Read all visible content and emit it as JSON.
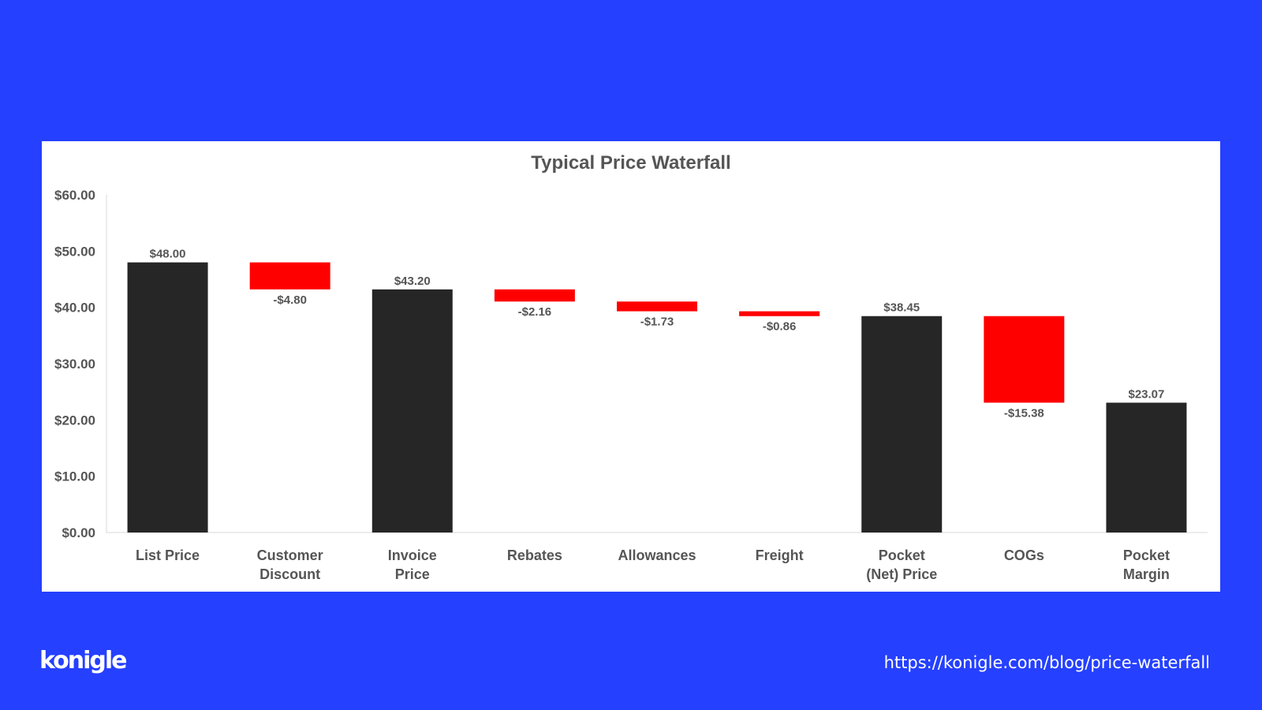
{
  "brand": {
    "logo_text": "konigle"
  },
  "footer": {
    "url": "https://konigle.com/blog/price-waterfall"
  },
  "colors": {
    "background": "#2540ff",
    "total_bar": "#262626",
    "decrease_bar": "#ff0000"
  },
  "chart_data": {
    "type": "bar",
    "subtype": "waterfall",
    "title": "Typical Price Waterfall",
    "xlabel": "",
    "ylabel": "",
    "ylim": [
      0,
      60
    ],
    "yticks": [
      0,
      10,
      20,
      30,
      40,
      50,
      60
    ],
    "ytick_labels": [
      "$0.00",
      "$10.00",
      "$20.00",
      "$30.00",
      "$40.00",
      "$50.00",
      "$60.00"
    ],
    "grid": false,
    "legend": "none",
    "categories": [
      [
        "List Price"
      ],
      [
        "Customer",
        "Discount"
      ],
      [
        "Invoice",
        "Price"
      ],
      [
        "Rebates"
      ],
      [
        "Allowances"
      ],
      [
        "Freight"
      ],
      [
        "Pocket",
        "(Net) Price"
      ],
      [
        "COGs"
      ],
      [
        "Pocket",
        "Margin"
      ]
    ],
    "bars": [
      {
        "kind": "total",
        "start": 0,
        "end": 48.0,
        "label": "$48.00"
      },
      {
        "kind": "decrease",
        "start": 48.0,
        "end": 43.2,
        "label": "-$4.80"
      },
      {
        "kind": "total",
        "start": 0,
        "end": 43.2,
        "label": "$43.20"
      },
      {
        "kind": "decrease",
        "start": 43.2,
        "end": 41.04,
        "label": "-$2.16"
      },
      {
        "kind": "decrease",
        "start": 41.04,
        "end": 39.31,
        "label": "-$1.73"
      },
      {
        "kind": "decrease",
        "start": 39.31,
        "end": 38.45,
        "label": "-$0.86"
      },
      {
        "kind": "total",
        "start": 0,
        "end": 38.45,
        "label": "$38.45"
      },
      {
        "kind": "decrease",
        "start": 38.45,
        "end": 23.07,
        "label": "-$15.38"
      },
      {
        "kind": "total",
        "start": 0,
        "end": 23.07,
        "label": "$23.07"
      }
    ]
  }
}
